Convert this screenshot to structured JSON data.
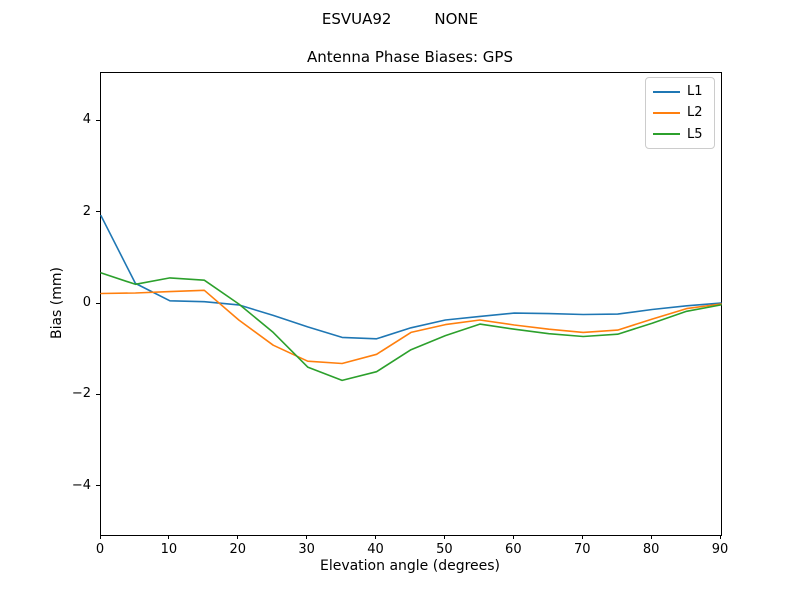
{
  "figure": {
    "suptitle": "ESVUA92         NONE",
    "title": "Antenna Phase Biases: GPS",
    "xlabel": "Elevation angle (degrees)",
    "ylabel": "Bias (mm)"
  },
  "chart_data": {
    "type": "line",
    "suptitle": "ESVUA92         NONE",
    "title": "Antenna Phase Biases: GPS",
    "xlabel": "Elevation angle (degrees)",
    "ylabel": "Bias (mm)",
    "grid": false,
    "legend_position": "upper right",
    "xlim": [
      0,
      90
    ],
    "ylim": [
      -5.05,
      5.05
    ],
    "x_ticks": [
      0,
      10,
      20,
      30,
      40,
      50,
      60,
      70,
      80,
      90
    ],
    "y_ticks": [
      -4,
      -2,
      0,
      2,
      4
    ],
    "x": [
      0,
      5,
      10,
      15,
      20,
      25,
      30,
      35,
      40,
      45,
      50,
      55,
      60,
      65,
      70,
      75,
      80,
      85,
      90
    ],
    "series": [
      {
        "name": "L1",
        "color": "#1f77b4",
        "values": [
          1.93,
          0.45,
          0.07,
          0.05,
          -0.02,
          -0.25,
          -0.5,
          -0.73,
          -0.76,
          -0.52,
          -0.35,
          -0.27,
          -0.2,
          -0.21,
          -0.23,
          -0.22,
          -0.12,
          -0.04,
          0.02
        ]
      },
      {
        "name": "L2",
        "color": "#ff7f0e",
        "values": [
          0.23,
          0.24,
          0.27,
          0.3,
          -0.35,
          -0.9,
          -1.25,
          -1.3,
          -1.1,
          -0.62,
          -0.45,
          -0.35,
          -0.46,
          -0.55,
          -0.62,
          -0.57,
          -0.33,
          -0.1,
          0.0
        ]
      },
      {
        "name": "L5",
        "color": "#2ca02c",
        "values": [
          0.68,
          0.43,
          0.57,
          0.52,
          0.0,
          -0.62,
          -1.38,
          -1.67,
          -1.48,
          -1.0,
          -0.69,
          -0.44,
          -0.55,
          -0.65,
          -0.71,
          -0.66,
          -0.42,
          -0.16,
          -0.02
        ]
      }
    ]
  }
}
